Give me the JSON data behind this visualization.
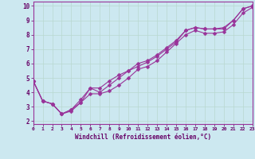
{
  "xlabel": "Windchill (Refroidissement éolien,°C)",
  "bg_color": "#cce8f0",
  "line_color": "#993399",
  "grid_color": "#aaddcc",
  "x_values": [
    0,
    1,
    2,
    3,
    4,
    5,
    6,
    7,
    8,
    9,
    10,
    11,
    12,
    13,
    14,
    15,
    16,
    17,
    18,
    19,
    20,
    21,
    22,
    23
  ],
  "line1": [
    4.8,
    3.4,
    3.2,
    2.5,
    2.7,
    3.3,
    4.3,
    4.0,
    4.5,
    5.0,
    5.5,
    5.8,
    6.1,
    6.5,
    7.0,
    7.5,
    8.3,
    8.5,
    8.4,
    8.4,
    8.4,
    9.0,
    9.8,
    10.0
  ],
  "line2": [
    4.8,
    3.4,
    3.2,
    2.5,
    2.8,
    3.5,
    4.3,
    4.3,
    4.8,
    5.2,
    5.5,
    6.0,
    6.2,
    6.6,
    7.1,
    7.6,
    8.3,
    8.5,
    8.4,
    8.4,
    8.5,
    9.0,
    9.8,
    10.0
  ],
  "line3": [
    4.8,
    3.4,
    3.2,
    2.5,
    2.8,
    3.3,
    3.9,
    3.9,
    4.1,
    4.5,
    5.0,
    5.6,
    5.8,
    6.2,
    6.8,
    7.4,
    8.0,
    8.3,
    8.1,
    8.1,
    8.2,
    8.7,
    9.5,
    9.9
  ],
  "xlim": [
    0,
    23
  ],
  "ylim": [
    1.8,
    10.3
  ],
  "xticks": [
    0,
    1,
    2,
    3,
    4,
    5,
    6,
    7,
    8,
    9,
    10,
    11,
    12,
    13,
    14,
    15,
    16,
    17,
    18,
    19,
    20,
    21,
    22,
    23
  ],
  "yticks": [
    2,
    3,
    4,
    5,
    6,
    7,
    8,
    9,
    10
  ],
  "markersize": 2.5,
  "linewidth": 0.8
}
